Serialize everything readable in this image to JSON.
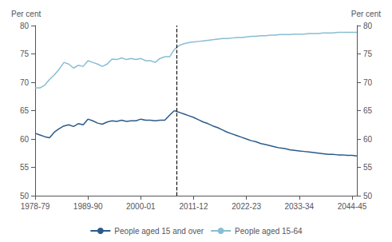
{
  "chart_data": {
    "type": "line",
    "ylabel": "Per cent",
    "y2label": "Per cent",
    "xlim": [
      1978,
      2045
    ],
    "xticks": [
      {
        "value": 1978,
        "label": "1978-79"
      },
      {
        "value": 1989,
        "label": "1989-90"
      },
      {
        "value": 2000,
        "label": "2000-01"
      },
      {
        "value": 2011,
        "label": "2011-12"
      },
      {
        "value": 2022,
        "label": "2022-23"
      },
      {
        "value": 2033,
        "label": "2033-34"
      },
      {
        "value": 2044,
        "label": "2044-45"
      }
    ],
    "ylim": [
      50,
      80
    ],
    "yticks": [
      50,
      55,
      60,
      65,
      70,
      75,
      80
    ],
    "y2lim": [
      50,
      80
    ],
    "y2ticks": [
      50,
      55,
      60,
      65,
      70,
      75,
      80
    ],
    "grid": false,
    "legend": "bottom",
    "vline": {
      "x": 2007.5,
      "color": "#000000",
      "line_style": "dashed"
    },
    "series": [
      {
        "name": "People aged 15 and over",
        "color": "#2a5b8a",
        "x": [
          1978,
          1979,
          1980,
          1981,
          1982,
          1983,
          1984,
          1985,
          1986,
          1987,
          1988,
          1989,
          1990,
          1991,
          1992,
          1993,
          1994,
          1995,
          1996,
          1997,
          1998,
          1999,
          2000,
          2001,
          2002,
          2003,
          2004,
          2005,
          2006,
          2007
        ],
        "values": [
          61.0,
          60.7,
          60.4,
          60.2,
          61.2,
          61.8,
          62.3,
          62.5,
          62.2,
          62.7,
          62.5,
          63.5,
          63.2,
          62.8,
          62.6,
          63.0,
          63.2,
          63.1,
          63.3,
          63.1,
          63.2,
          63.2,
          63.5,
          63.3,
          63.3,
          63.2,
          63.3,
          63.3,
          64.2,
          65.0
        ]
      },
      {
        "name": "People aged 15-64",
        "color": "#89bdd3",
        "x": [
          1978,
          1979,
          1980,
          1981,
          1982,
          1983,
          1984,
          1985,
          1986,
          1987,
          1988,
          1989,
          1990,
          1991,
          1992,
          1993,
          1994,
          1995,
          1996,
          1997,
          1998,
          1999,
          2000,
          2001,
          2002,
          2003,
          2004,
          2005,
          2006,
          2007
        ],
        "values": [
          69.0,
          69.0,
          69.5,
          70.5,
          71.3,
          72.3,
          73.5,
          73.2,
          72.5,
          73.0,
          72.8,
          73.8,
          73.5,
          73.2,
          72.8,
          73.2,
          74.1,
          74.0,
          74.3,
          74.0,
          74.2,
          74.0,
          74.2,
          73.8,
          73.8,
          73.5,
          74.2,
          74.5,
          74.5,
          75.8
        ]
      },
      {
        "name": "People aged 15 and over",
        "color": "#2a5b8a",
        "x": [
          2007,
          2008,
          2009,
          2010,
          2011,
          2012,
          2013,
          2014,
          2015,
          2016,
          2017,
          2018,
          2019,
          2020,
          2021,
          2022,
          2023,
          2024,
          2025,
          2026,
          2027,
          2028,
          2029,
          2030,
          2031,
          2032,
          2033,
          2034,
          2035,
          2036,
          2037,
          2038,
          2039,
          2040,
          2041,
          2042,
          2043,
          2044,
          2045
        ],
        "values": [
          65.0,
          64.7,
          64.4,
          64.1,
          63.8,
          63.4,
          63.0,
          62.7,
          62.3,
          62.0,
          61.6,
          61.2,
          60.9,
          60.6,
          60.3,
          60.0,
          59.7,
          59.5,
          59.2,
          59.0,
          58.8,
          58.6,
          58.4,
          58.3,
          58.1,
          58.0,
          57.9,
          57.8,
          57.7,
          57.6,
          57.5,
          57.4,
          57.3,
          57.3,
          57.2,
          57.2,
          57.1,
          57.1,
          57.0
        ]
      },
      {
        "name": "People aged 15-64",
        "color": "#89bdd3",
        "x": [
          2007,
          2008,
          2009,
          2010,
          2011,
          2012,
          2013,
          2014,
          2015,
          2016,
          2017,
          2018,
          2019,
          2020,
          2021,
          2022,
          2023,
          2024,
          2025,
          2026,
          2027,
          2028,
          2029,
          2030,
          2031,
          2032,
          2033,
          2034,
          2035,
          2036,
          2037,
          2038,
          2039,
          2040,
          2041,
          2042,
          2043,
          2044,
          2045
        ],
        "values": [
          75.8,
          76.5,
          76.8,
          77.0,
          77.1,
          77.2,
          77.3,
          77.4,
          77.5,
          77.6,
          77.7,
          77.7,
          77.8,
          77.9,
          77.9,
          78.0,
          78.1,
          78.1,
          78.2,
          78.2,
          78.3,
          78.3,
          78.4,
          78.4,
          78.4,
          78.5,
          78.5,
          78.5,
          78.6,
          78.6,
          78.6,
          78.7,
          78.7,
          78.7,
          78.8,
          78.8,
          78.8,
          78.8,
          78.8
        ]
      }
    ]
  }
}
